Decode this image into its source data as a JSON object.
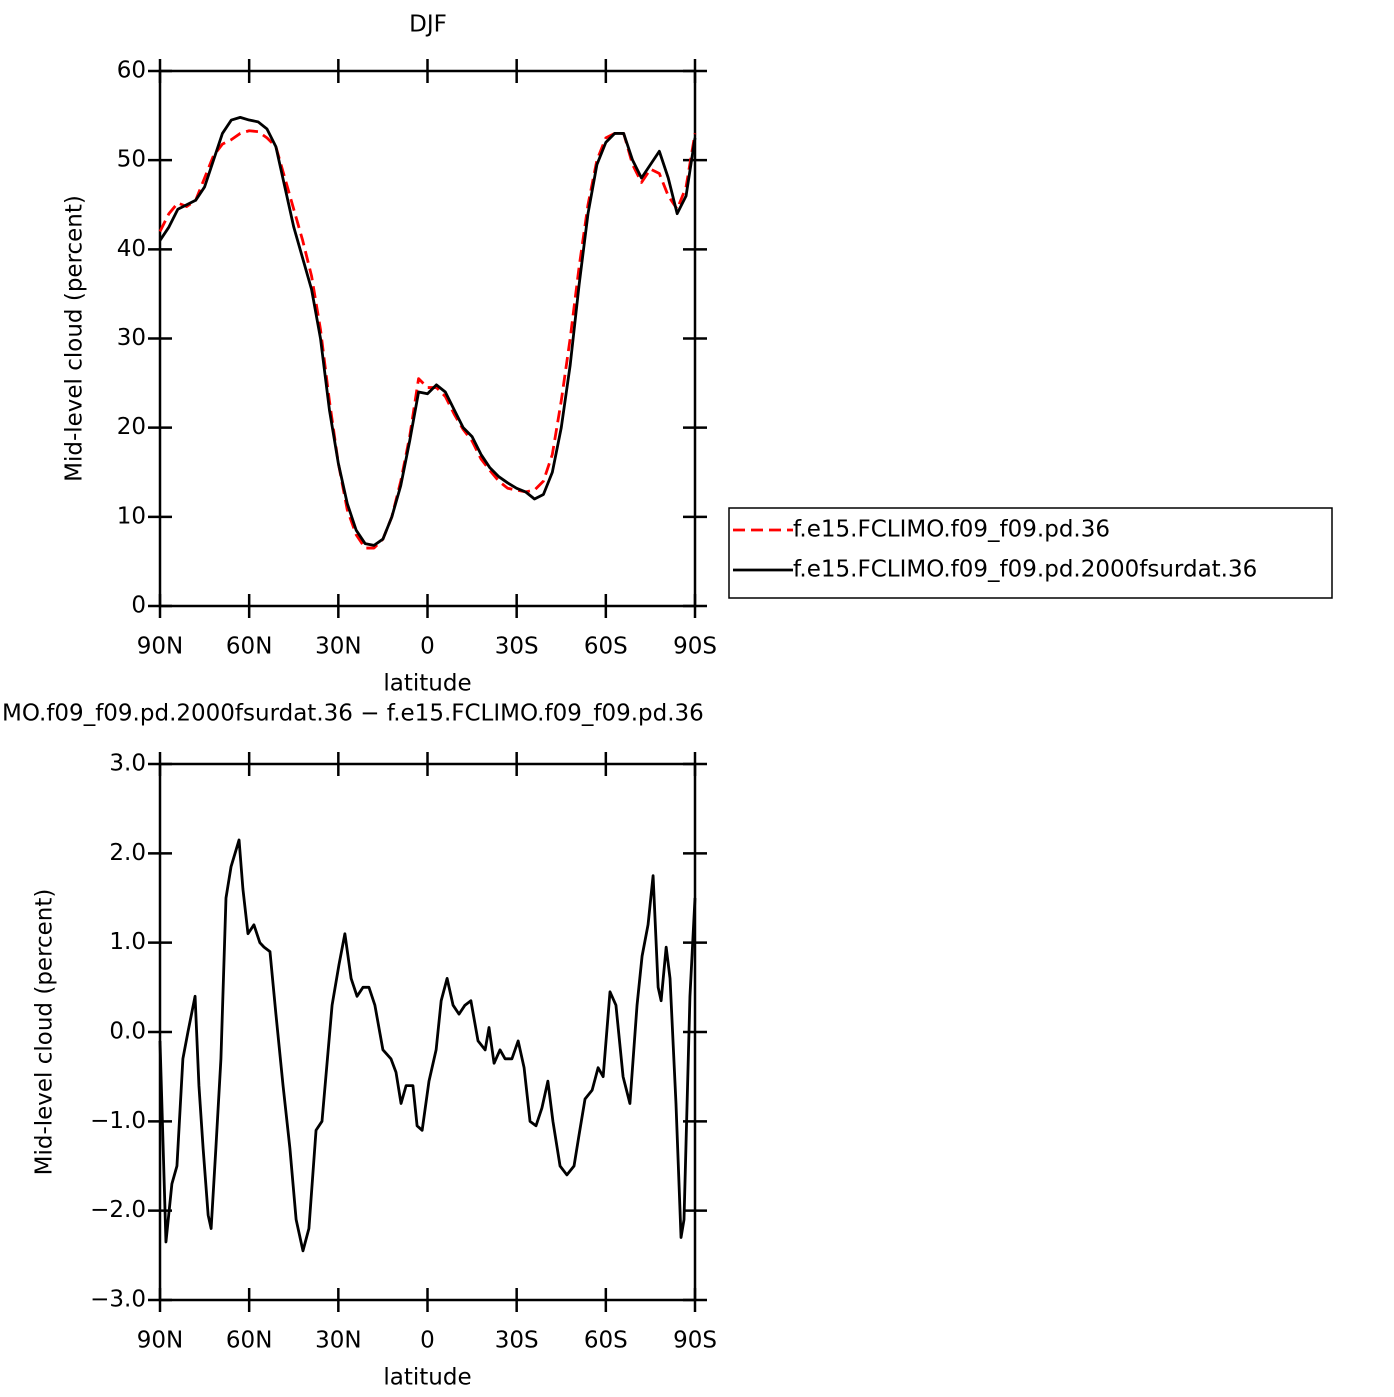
{
  "chart_data": [
    {
      "type": "line",
      "title": "DJF",
      "x_label": "latitude",
      "y_label": "Mid-level cloud (percent)",
      "x": [
        90,
        87,
        84,
        81,
        78,
        75,
        72,
        69,
        66,
        63,
        60,
        57,
        54,
        51,
        48,
        45,
        42,
        39,
        36,
        33,
        30,
        27,
        24,
        21,
        18,
        15,
        12,
        9,
        6,
        3,
        0,
        -3,
        -6,
        -9,
        -12,
        -15,
        -18,
        -21,
        -24,
        -27,
        -30,
        -33,
        -36,
        -39,
        -42,
        -45,
        -48,
        -51,
        -54,
        -57,
        -60,
        -63,
        -66,
        -69,
        -72,
        -75,
        -78,
        -81,
        -84,
        -87,
        -90
      ],
      "series": [
        {
          "name": "f.e15.FCLIMO.f09_f09.pd.36",
          "color": "#ff0000",
          "dashed": true,
          "values": [
            42,
            44,
            45.2,
            44.8,
            45.5,
            48,
            50.5,
            51.8,
            52.3,
            53,
            53.3,
            53.2,
            52.5,
            51.5,
            48,
            44.5,
            41,
            37,
            31,
            23,
            16,
            10.8,
            8,
            6.5,
            6.5,
            7.5,
            10,
            14,
            19,
            25.5,
            24.5,
            24.5,
            23.5,
            21.5,
            19.8,
            18.5,
            16.5,
            15.2,
            14,
            13.2,
            13,
            12.8,
            13,
            14,
            17,
            23,
            30,
            38,
            45,
            50,
            52.5,
            53,
            53,
            49.5,
            47.5,
            49,
            48.5,
            46,
            44.5,
            47,
            53
          ]
        },
        {
          "name": "f.e15.FCLIMO.f09_f09.pd.2000fsurdat.36",
          "color": "#000000",
          "dashed": false,
          "values": [
            41,
            42.5,
            44.5,
            45,
            45.5,
            47,
            50,
            53,
            54.5,
            54.8,
            54.5,
            54.3,
            53.5,
            51.5,
            47,
            42.5,
            39,
            35.5,
            30,
            22,
            16,
            11.5,
            8.5,
            7,
            6.8,
            7.5,
            10,
            13.5,
            18.5,
            24,
            23.8,
            24.8,
            24,
            22,
            20,
            19,
            17,
            15.5,
            14.5,
            13.8,
            13.2,
            12.8,
            12,
            12.5,
            15,
            20,
            27,
            36,
            44,
            49.5,
            52,
            53,
            53,
            50,
            48,
            49.5,
            51,
            48,
            44,
            46,
            52.5
          ]
        }
      ],
      "xlim": [
        90,
        -90
      ],
      "xticks": [
        {
          "value": 90,
          "label": "90N"
        },
        {
          "value": 60,
          "label": "60N"
        },
        {
          "value": 30,
          "label": "30N"
        },
        0,
        {
          "value": -30,
          "label": "30S"
        },
        {
          "value": -60,
          "label": "60S"
        },
        {
          "value": -90,
          "label": "90S"
        }
      ],
      "ylim": [
        0,
        60
      ],
      "yticks": [
        0,
        10,
        20,
        30,
        40,
        50,
        60
      ],
      "legend": "outside-right"
    },
    {
      "type": "line",
      "title": "MO.f09_f09.pd.2000fsurdat.36 − f.e15.FCLIMO.f09_f09.pd.36",
      "x_label": "latitude",
      "y_label": "Mid-level cloud (percent)",
      "x": [
        90,
        88,
        86,
        84.3,
        82.3,
        80.6,
        78.2,
        76.9,
        75.5,
        73.8,
        72.8,
        71.2,
        69.5,
        67.8,
        66.1,
        63.4,
        62.1,
        60.4,
        58.4,
        56.4,
        55,
        53,
        51,
        48.6,
        46.3,
        44.2,
        41.9,
        39.9,
        37.5,
        35.5,
        32.1,
        29.8,
        27.8,
        25.7,
        23.7,
        21.7,
        19.7,
        17.7,
        15,
        12.3,
        10.6,
        8.9,
        7.2,
        4.9,
        3.5,
        1.8,
        -0.5,
        -2.9,
        -4.6,
        -6.6,
        -8.6,
        -10.6,
        -12.6,
        -14.6,
        -17,
        -19.4,
        -20.7,
        -22.4,
        -24.4,
        -26.1,
        -28.4,
        -30.5,
        -32.5,
        -34.5,
        -36.5,
        -38.5,
        -40.5,
        -42.2,
        -44.6,
        -46.9,
        -49.3,
        -51,
        -53,
        -55.4,
        -57.4,
        -59.1,
        -61.4,
        -63.4,
        -65.8,
        -68.1,
        -70.5,
        -72.2,
        -74.2,
        -75.9,
        -77.6,
        -78.6,
        -80.3,
        -81.6,
        -83.6,
        -85.3,
        -86.3,
        -88.3,
        -90
      ],
      "series": [
        {
          "color": "#000000",
          "dashed": false,
          "values": [
            -0.1,
            -2.35,
            -1.7,
            -1.5,
            -0.3,
            0,
            0.4,
            -0.6,
            -1.3,
            -2.05,
            -2.2,
            -1.3,
            -0.3,
            1.5,
            1.85,
            2.15,
            1.6,
            1.1,
            1.2,
            1,
            0.95,
            0.9,
            0.2,
            -0.6,
            -1.3,
            -2.1,
            -2.45,
            -2.2,
            -1.1,
            -1,
            0.3,
            0.75,
            1.1,
            0.6,
            0.4,
            0.5,
            0.5,
            0.3,
            -0.2,
            -0.3,
            -0.45,
            -0.8,
            -0.6,
            -0.6,
            -1.05,
            -1.1,
            -0.55,
            -0.2,
            0.35,
            0.6,
            0.3,
            0.2,
            0.3,
            0.35,
            -0.1,
            -0.2,
            0.05,
            -0.35,
            -0.2,
            -0.3,
            -0.3,
            -0.1,
            -0.4,
            -1,
            -1.05,
            -0.85,
            -0.55,
            -1,
            -1.5,
            -1.6,
            -1.5,
            -1.15,
            -0.75,
            -0.65,
            -0.4,
            -0.5,
            0.45,
            0.3,
            -0.5,
            -0.8,
            0.3,
            0.85,
            1.2,
            1.75,
            0.5,
            0.35,
            0.95,
            0.6,
            -0.8,
            -2.3,
            -2.1,
            0.4,
            1.5
          ]
        }
      ],
      "xlim": [
        90,
        -90
      ],
      "xticks": [
        {
          "value": 90,
          "label": "90N"
        },
        {
          "value": 60,
          "label": "60N"
        },
        {
          "value": 30,
          "label": "30N"
        },
        0,
        {
          "value": -30,
          "label": "30S"
        },
        {
          "value": -60,
          "label": "60S"
        },
        {
          "value": -90,
          "label": "90S"
        }
      ],
      "ylim": [
        -3,
        3
      ],
      "yticks": [
        {
          "value": -3,
          "label": "−3.0"
        },
        {
          "value": -2,
          "label": "−2.0"
        },
        {
          "value": -1,
          "label": "−1.0"
        },
        {
          "value": 0,
          "label": "0.0"
        },
        {
          "value": 1,
          "label": "1.0"
        },
        {
          "value": 2,
          "label": "2.0"
        },
        {
          "value": 3,
          "label": "3.0"
        }
      ]
    }
  ]
}
